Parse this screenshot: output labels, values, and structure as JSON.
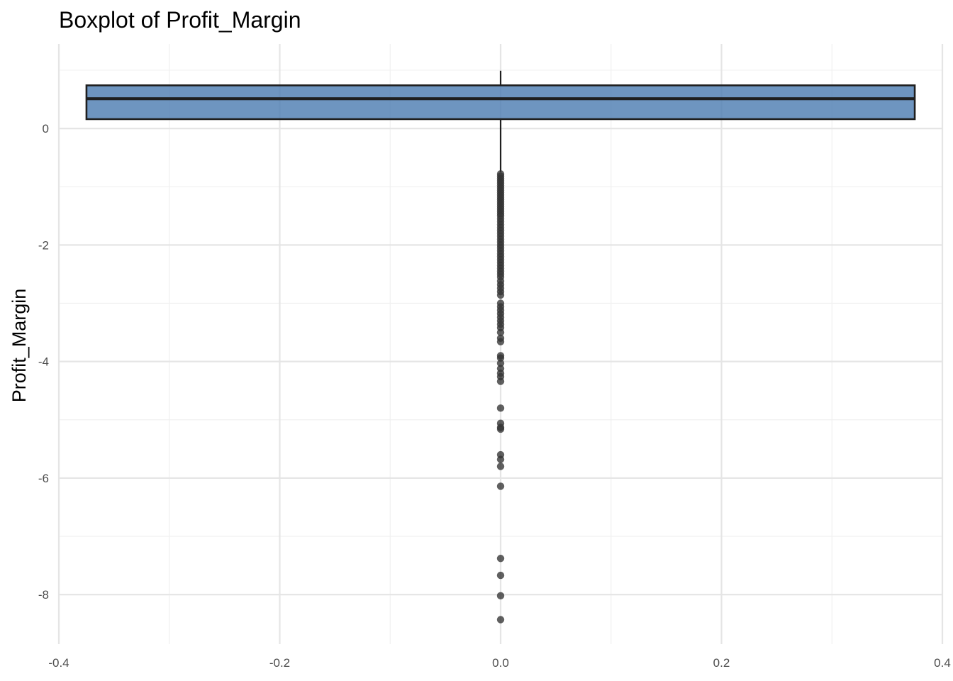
{
  "chart_data": {
    "type": "boxplot",
    "title": "Boxplot of Profit_Margin",
    "xlabel": "",
    "ylabel": "Profit_Margin",
    "xlim": [
      -0.4,
      0.4
    ],
    "ylim": [
      -8.85,
      1.45
    ],
    "x_ticks": [
      -0.4,
      -0.2,
      0.0,
      0.2,
      0.4
    ],
    "x_tick_labels": [
      "-0.4",
      "-0.2",
      "0.0",
      "0.2",
      "0.4"
    ],
    "y_ticks": [
      -8,
      -6,
      -4,
      -2,
      0
    ],
    "y_tick_labels": [
      "-8",
      "-6",
      "-4",
      "-2",
      "0"
    ],
    "grid": true,
    "box": {
      "x": 0.0,
      "width": 0.75,
      "q1": 0.16,
      "median": 0.51,
      "q3": 0.74,
      "whisker_low": -0.75,
      "whisker_high": 0.99
    },
    "outliers": [
      -0.78,
      -0.82,
      -0.86,
      -0.9,
      -0.94,
      -0.98,
      -1.02,
      -1.06,
      -1.1,
      -1.14,
      -1.18,
      -1.22,
      -1.26,
      -1.3,
      -1.34,
      -1.38,
      -1.42,
      -1.46,
      -1.5,
      -1.55,
      -1.6,
      -1.65,
      -1.7,
      -1.75,
      -1.8,
      -1.85,
      -1.9,
      -1.95,
      -2.0,
      -2.05,
      -2.1,
      -2.15,
      -2.2,
      -2.25,
      -2.3,
      -2.35,
      -2.4,
      -2.45,
      -2.5,
      -2.55,
      -2.62,
      -2.68,
      -2.74,
      -2.8,
      -2.86,
      -3.0,
      -3.06,
      -3.12,
      -3.18,
      -3.24,
      -3.3,
      -3.36,
      -3.42,
      -3.5,
      -3.6,
      -3.66,
      -3.9,
      -3.94,
      -4.03,
      -4.12,
      -4.2,
      -4.26,
      -4.34,
      -4.8,
      -5.06,
      -5.13,
      -5.16,
      -5.6,
      -5.68,
      -5.8,
      -6.14,
      -7.38,
      -7.67,
      -8.02,
      -8.43
    ],
    "colors": {
      "box_fill": "#4a7bb0",
      "box_fill_opacity": 0.8,
      "box_line": "#1f1f1f",
      "outlier": "#333333",
      "grid_major": "#e5e5e5",
      "grid_minor": "#f0f0f0"
    }
  }
}
